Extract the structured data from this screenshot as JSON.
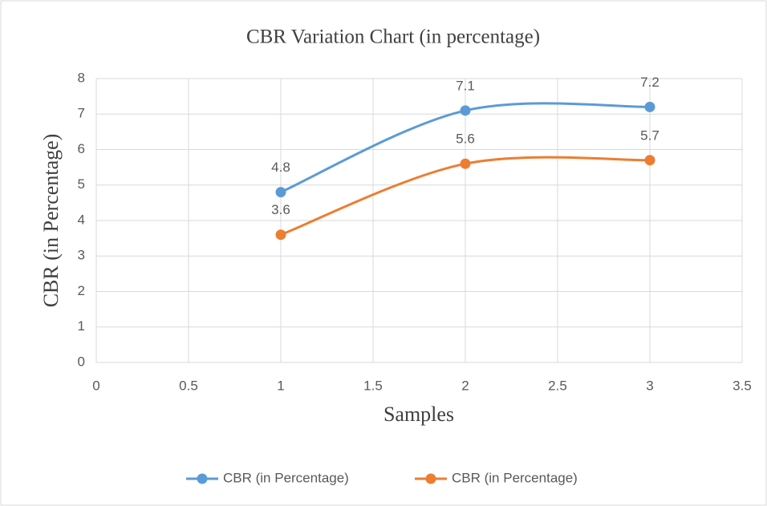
{
  "chart_data": {
    "type": "line",
    "title": "CBR Variation Chart (in percentage)",
    "xlabel": "Samples",
    "ylabel": "CBR (in Percentage)",
    "x": [
      1,
      2,
      3
    ],
    "series": [
      {
        "name": "CBR (in Percentage)",
        "color": "#5b9bd5",
        "values": [
          4.8,
          7.1,
          7.2
        ]
      },
      {
        "name": "CBR (in Percentage)",
        "color": "#ed7d31",
        "values": [
          3.6,
          5.6,
          5.7
        ]
      }
    ],
    "xlim": [
      0,
      3.5
    ],
    "xticks": [
      0,
      0.5,
      1,
      1.5,
      2,
      2.5,
      3,
      3.5
    ],
    "ylim": [
      0,
      8
    ],
    "yticks": [
      0,
      1,
      2,
      3,
      4,
      5,
      6,
      7,
      8
    ],
    "grid": true,
    "smooth": true,
    "legend": "bottom"
  }
}
